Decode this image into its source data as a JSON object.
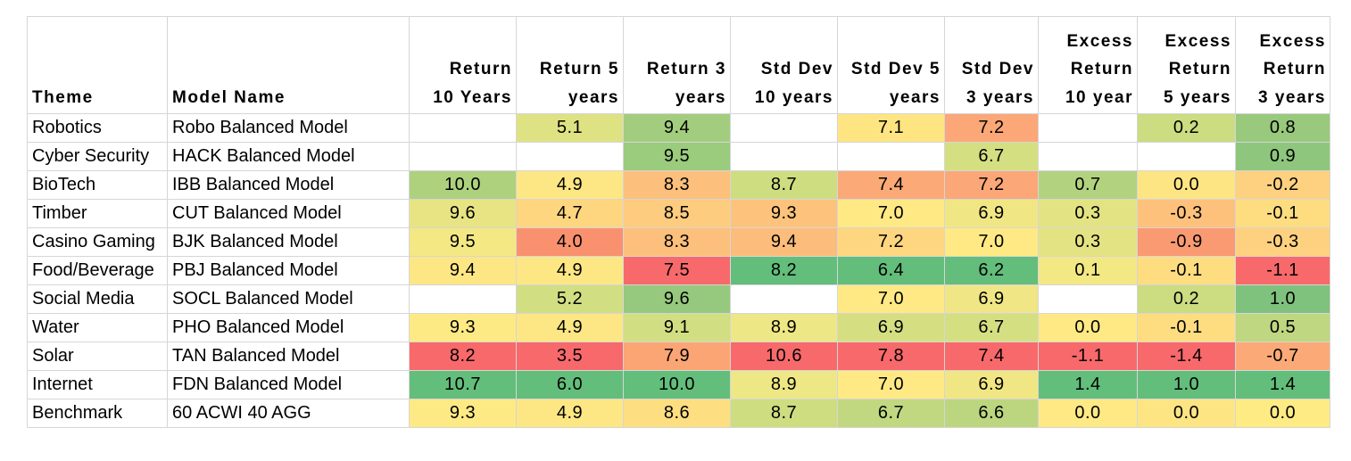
{
  "chart_data": {
    "type": "table",
    "columns": [
      "Theme",
      "Model Name",
      "Return 10 Years",
      "Return 5 years",
      "Return 3 years",
      "Std Dev 10 years",
      "Std Dev 5 years",
      "Std Dev 3 years",
      "Excess Return 10 year",
      "Excess Return 5 years",
      "Excess Return 3 years"
    ],
    "header_lines": [
      [
        "Theme"
      ],
      [
        "Model Name"
      ],
      [
        "Return",
        "10 Years"
      ],
      [
        "Return 5",
        "years"
      ],
      [
        "Return 3",
        "years"
      ],
      [
        "Std Dev",
        "10 years"
      ],
      [
        "Std Dev 5",
        "years"
      ],
      [
        "Std Dev",
        "3 years"
      ],
      [
        "Excess",
        "Return",
        "10 year"
      ],
      [
        "Excess",
        "Return",
        "5 years"
      ],
      [
        "Excess",
        "Return",
        "3 years"
      ]
    ],
    "rows": [
      {
        "theme": "Robotics",
        "model": "Robo Balanced Model",
        "values": [
          "",
          "5.1",
          "9.4",
          "",
          "7.1",
          "7.2",
          "",
          "0.2",
          "0.8"
        ]
      },
      {
        "theme": "Cyber Security",
        "model": "HACK Balanced Model",
        "values": [
          "",
          "",
          "9.5",
          "",
          "",
          "6.7",
          "",
          "",
          "0.9"
        ]
      },
      {
        "theme": "BioTech",
        "model": "IBB Balanced Model",
        "values": [
          "10.0",
          "4.9",
          "8.3",
          "8.7",
          "7.4",
          "7.2",
          "0.7",
          "0.0",
          "-0.2"
        ]
      },
      {
        "theme": "Timber",
        "model": "CUT Balanced Model",
        "values": [
          "9.6",
          "4.7",
          "8.5",
          "9.3",
          "7.0",
          "6.9",
          "0.3",
          "-0.3",
          "-0.1"
        ]
      },
      {
        "theme": "Casino Gaming",
        "model": "BJK Balanced Model",
        "values": [
          "9.5",
          "4.0",
          "8.3",
          "9.4",
          "7.2",
          "7.0",
          "0.3",
          "-0.9",
          "-0.3"
        ]
      },
      {
        "theme": "Food/Beverage",
        "model": "PBJ Balanced Model",
        "values": [
          "9.4",
          "4.9",
          "7.5",
          "8.2",
          "6.4",
          "6.2",
          "0.1",
          "-0.1",
          "-1.1"
        ]
      },
      {
        "theme": "Social Media",
        "model": "SOCL Balanced Model",
        "values": [
          "",
          "5.2",
          "9.6",
          "",
          "7.0",
          "6.9",
          "",
          "0.2",
          "1.0"
        ]
      },
      {
        "theme": "Water",
        "model": "PHO Balanced Model",
        "values": [
          "9.3",
          "4.9",
          "9.1",
          "8.9",
          "6.9",
          "6.7",
          "0.0",
          "-0.1",
          "0.5"
        ]
      },
      {
        "theme": "Solar",
        "model": "TAN Balanced Model",
        "values": [
          "8.2",
          "3.5",
          "7.9",
          "10.6",
          "7.8",
          "7.4",
          "-1.1",
          "-1.4",
          "-0.7"
        ]
      },
      {
        "theme": "Internet",
        "model": "FDN Balanced Model",
        "values": [
          "10.7",
          "6.0",
          "10.0",
          "8.9",
          "7.0",
          "6.9",
          "1.4",
          "1.0",
          "1.4"
        ]
      },
      {
        "theme": "Benchmark",
        "model": "60 ACWI 40 AGG",
        "values": [
          "9.3",
          "4.9",
          "8.6",
          "8.7",
          "6.7",
          "6.6",
          "0.0",
          "0.0",
          "0.0"
        ]
      }
    ],
    "cell_colors": [
      [
        "",
        "#dfe283",
        "#a3cd7e",
        "",
        "#fee582",
        "#fba777",
        "",
        "#cbdc81",
        "#98c97d"
      ],
      [
        "",
        "",
        "#9bcb7d",
        "",
        "",
        "#d4df82",
        "",
        "",
        "#8ec67d"
      ],
      [
        "#aed17e",
        "#fde784",
        "#fcc07c",
        "#cfdd81",
        "#fbaa77",
        "#fba777",
        "#b3d27f",
        "#fee583",
        "#fdd17f"
      ],
      [
        "#e8e483",
        "#fed680",
        "#fdcc7e",
        "#fdc37c",
        "#ffe984",
        "#f1e684",
        "#e4e383",
        "#fdc17c",
        "#fedd81"
      ],
      [
        "#f3e884",
        "#f9916f",
        "#fcc07c",
        "#fcbc7b",
        "#fed680",
        "#ffe984",
        "#e4e383",
        "#fa9a73",
        "#fdd17f"
      ],
      [
        "#fde684",
        "#fde784",
        "#f8696b",
        "#63be7b",
        "#63be7b",
        "#63be7b",
        "#f2e884",
        "#fedd81",
        "#f8696b"
      ],
      [
        "",
        "#d2de82",
        "#96c97d",
        "",
        "#fee985",
        "#f1e685",
        "",
        "#cbdc81",
        "#7fc27d"
      ],
      [
        "#feea84",
        "#fde784",
        "#d1df82",
        "#ede785",
        "#d5df82",
        "#d4df82",
        "#fee984",
        "#fedd81",
        "#bfd780"
      ],
      [
        "#f8696b",
        "#f8696b",
        "#fba575",
        "#f8696b",
        "#f8696b",
        "#f8696b",
        "#f8696b",
        "#f8696b",
        "#fbaa77"
      ],
      [
        "#63be7b",
        "#63be7b",
        "#63be7b",
        "#ede785",
        "#ffe984",
        "#f1e684",
        "#63be7b",
        "#63be7b",
        "#63be7b"
      ],
      [
        "#feea84",
        "#fde784",
        "#fdde81",
        "#cfdd81",
        "#c1d880",
        "#bcd680",
        "#fee984",
        "#fee583",
        "#ffeb84"
      ]
    ]
  }
}
